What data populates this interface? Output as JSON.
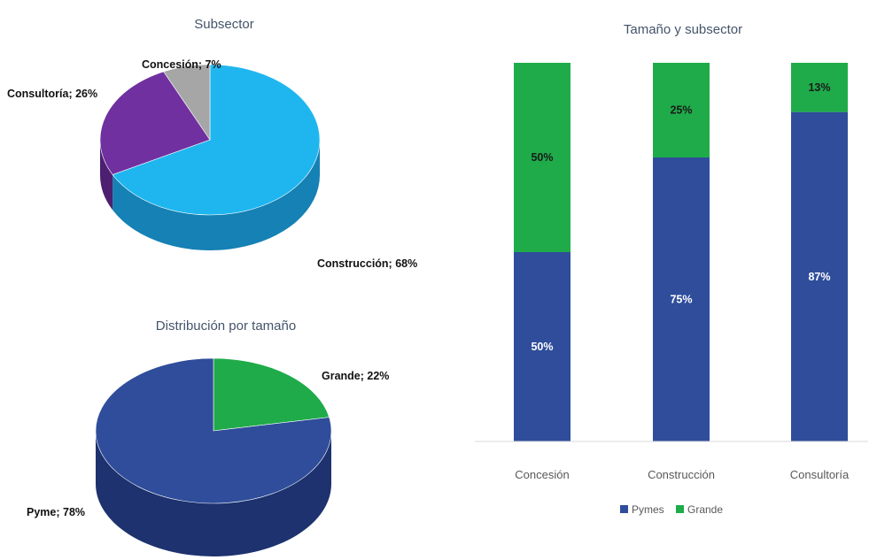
{
  "chart_data": [
    {
      "type": "pie",
      "title": "Subsector",
      "slices": [
        {
          "label": "Construcción",
          "value": 68,
          "label_text": "Construcción; 68%",
          "color": "#1fb6ef",
          "side_color": "#1581b4"
        },
        {
          "label": "Consultoría",
          "value": 26,
          "label_text": "Consultoría; 26%",
          "color": "#7030a0",
          "side_color": "#4d1f70"
        },
        {
          "label": "Concesión",
          "value": 7,
          "label_text": "Concesión; 7%",
          "color": "#a6a6a6",
          "side_color": "#767676"
        }
      ]
    },
    {
      "type": "pie",
      "title": "Distribución por tamaño",
      "slices": [
        {
          "label": "Grande",
          "value": 22,
          "label_text": "Grande; 22%",
          "color": "#1fab4a",
          "side_color": "#137a33"
        },
        {
          "label": "Pyme",
          "value": 78,
          "label_text": "Pyme; 78%",
          "color": "#2f4d9b",
          "side_color": "#1d326e"
        }
      ]
    },
    {
      "type": "bar",
      "stacked": true,
      "title": "Tamaño y subsector",
      "categories": [
        "Concesión",
        "Construcción",
        "Consultoría"
      ],
      "series": [
        {
          "name": "Pymes",
          "values": [
            50,
            75,
            87
          ],
          "labels": [
            "50%",
            "75%",
            "87%"
          ],
          "color": "#2f4d9b"
        },
        {
          "name": "Grande",
          "values": [
            50,
            25,
            13
          ],
          "labels": [
            "50%",
            "25%",
            "13%"
          ],
          "color": "#1fab4a"
        }
      ],
      "ylim": [
        0,
        100
      ],
      "legend_position": "bottom",
      "grid": false
    }
  ]
}
